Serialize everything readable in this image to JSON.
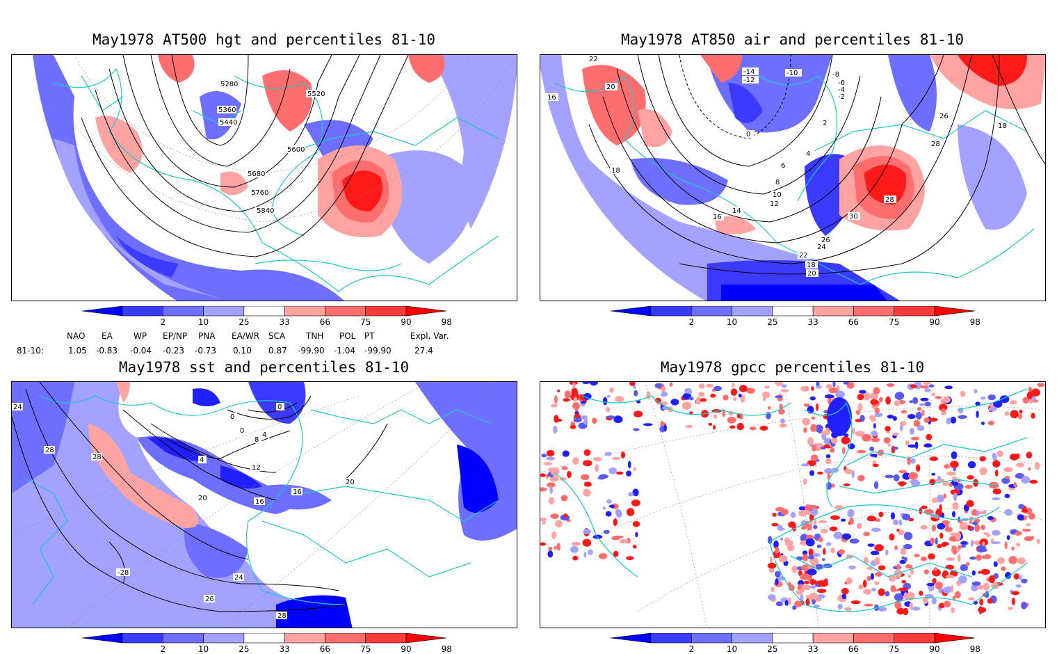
{
  "panels": [
    {
      "title": "May1978 AT500 hgt and percentiles 81-10",
      "contour_labels": [
        "5280",
        "5360",
        "5440",
        "5520",
        "5600",
        "5680",
        "5760",
        "5840"
      ]
    },
    {
      "title": "May1978 AT850 air and percentiles 81-10",
      "contour_labels": [
        "22",
        "20",
        "16",
        "18",
        "-14",
        "-12",
        "-10",
        "-8",
        "-6",
        "-4",
        "-2",
        "0",
        "2",
        "4",
        "6",
        "8",
        "10",
        "12",
        "14",
        "16",
        "18",
        "20",
        "22",
        "24",
        "26",
        "28",
        "30",
        "26",
        "28",
        "18"
      ]
    },
    {
      "title": "May1978 sst and percentiles 81-10",
      "contour_labels": [
        "24",
        "28",
        "28",
        "20",
        "16",
        "12",
        "8",
        "4",
        "0",
        "0",
        "4",
        "16",
        "20",
        "24",
        "26",
        "28",
        "-28",
        "0"
      ]
    },
    {
      "title": "May1978 gpcc percentiles 81-10",
      "contour_labels": []
    }
  ],
  "colorbar": {
    "labels": [
      "2",
      "10",
      "25",
      "33",
      "66",
      "75",
      "90",
      "98"
    ],
    "colors": [
      "#0000ff",
      "#3b3bff",
      "#6e6eff",
      "#a3a3ff",
      "#ffffff",
      "#ffa3a3",
      "#ff6e6e",
      "#ff3b3b",
      "#ff0000"
    ]
  },
  "indices": {
    "headers": [
      "NAO",
      "EA",
      "WP",
      "EP/NP",
      "PNA",
      "EA/WR",
      "SCA",
      "TNH",
      "POL",
      "PT",
      "Expl. Var."
    ],
    "row_label": "81-10:",
    "values": [
      "1.05",
      "-0.83",
      "-0.04",
      "-0.23",
      "-0.73",
      "0.10",
      "0.87",
      "-99.90",
      "-1.04",
      "-99.90",
      "27.4"
    ]
  },
  "colors": {
    "coast": "#1ec8c8",
    "blue_dark": "#2020ff",
    "blue_mid": "#5a5af0",
    "blue_light": "#a3a3ff",
    "red_light": "#ffa3a3",
    "red_mid": "#ff6e6e",
    "red_dark": "#ff1a1a"
  }
}
